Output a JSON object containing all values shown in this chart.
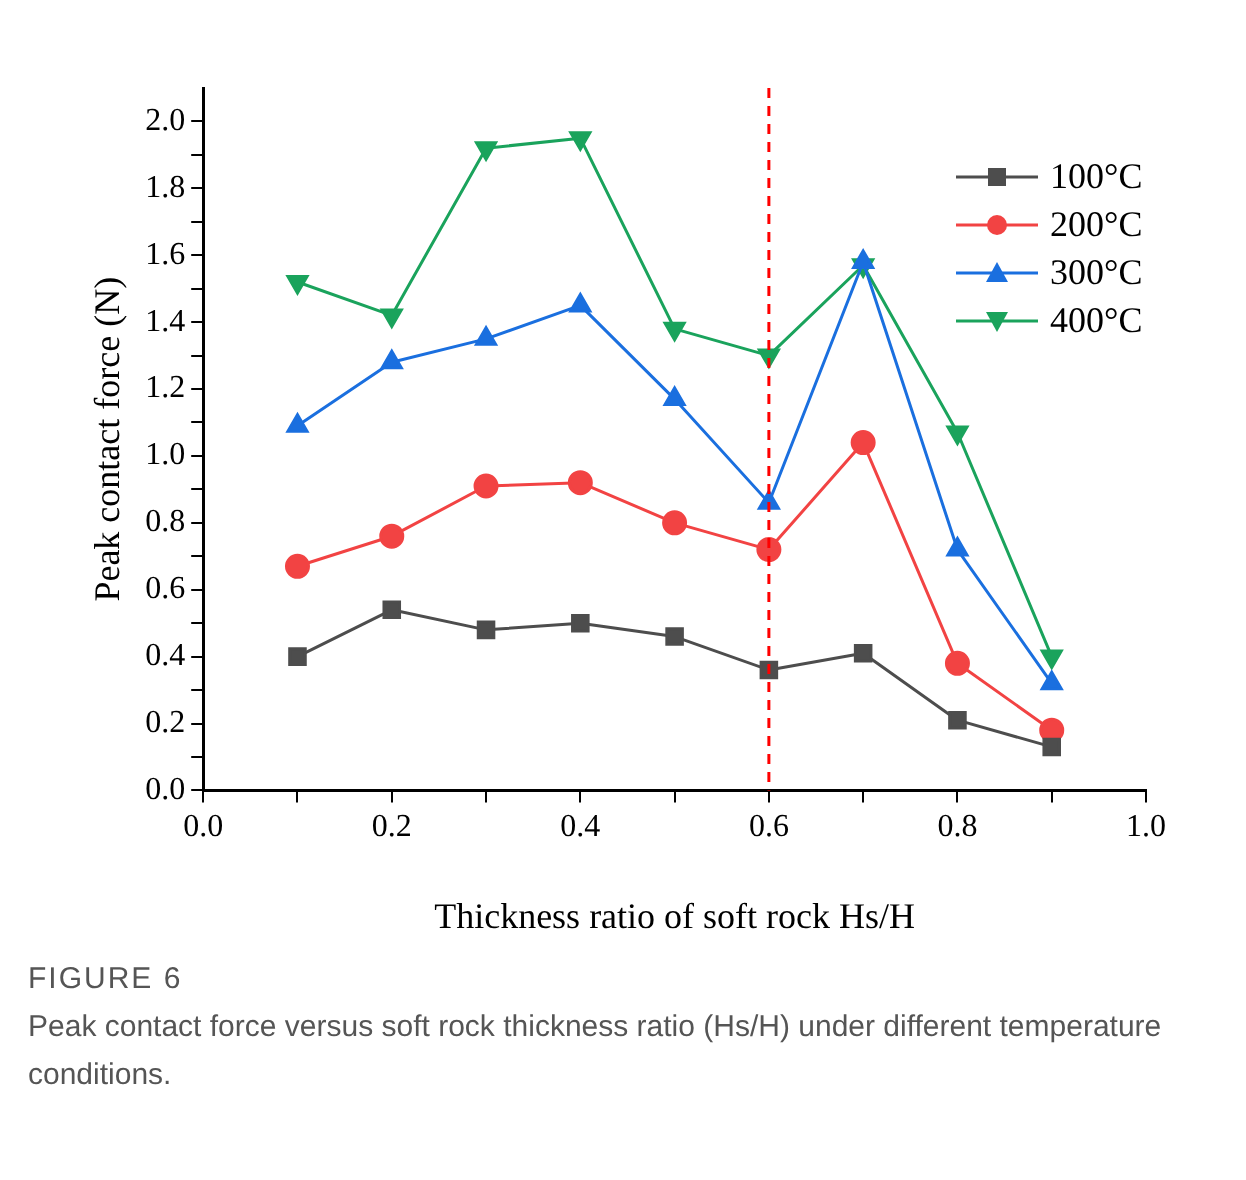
{
  "chart_data": {
    "type": "line",
    "xlabel": "Thickness ratio of soft rock Hs/H",
    "ylabel": "Peak contact force (N)",
    "x": [
      0.1,
      0.2,
      0.3,
      0.4,
      0.5,
      0.6,
      0.7,
      0.8,
      0.9
    ],
    "series": [
      {
        "name": "100°C",
        "color": "#4d4d4d",
        "marker": "square",
        "values": [
          0.4,
          0.54,
          0.48,
          0.5,
          0.46,
          0.36,
          0.41,
          0.21,
          0.13
        ]
      },
      {
        "name": "200°C",
        "color": "#f24343",
        "marker": "circle",
        "values": [
          0.67,
          0.76,
          0.91,
          0.92,
          0.8,
          0.72,
          1.04,
          0.38,
          0.18
        ]
      },
      {
        "name": "300°C",
        "color": "#1a6fdf",
        "marker": "triangle",
        "values": [
          1.09,
          1.28,
          1.35,
          1.45,
          1.17,
          0.86,
          1.58,
          0.72,
          0.32
        ]
      },
      {
        "name": "400°C",
        "color": "#1aa35c",
        "marker": "triangle-down",
        "values": [
          1.52,
          1.42,
          1.92,
          1.95,
          1.38,
          1.3,
          1.57,
          1.07,
          0.4
        ]
      }
    ],
    "xlim": [
      0,
      1
    ],
    "xticks": [
      {
        "value": 0,
        "label": "0.0"
      },
      {
        "value": 0.1,
        "label": null
      },
      {
        "value": 0.2,
        "label": "0.2"
      },
      {
        "value": 0.3,
        "label": null
      },
      {
        "value": 0.4,
        "label": "0.4"
      },
      {
        "value": 0.5,
        "label": null
      },
      {
        "value": 0.6,
        "label": "0.6"
      },
      {
        "value": 0.7,
        "label": null
      },
      {
        "value": 0.8,
        "label": "0.8"
      },
      {
        "value": 0.9,
        "label": null
      },
      {
        "value": 1,
        "label": "1.0"
      }
    ],
    "ylim": [
      0,
      2.1
    ],
    "yticks": [
      {
        "value": 0,
        "label": "0.0"
      },
      {
        "value": 0.1,
        "label": null
      },
      {
        "value": 0.2,
        "label": "0.2"
      },
      {
        "value": 0.3,
        "label": null
      },
      {
        "value": 0.4,
        "label": "0.4"
      },
      {
        "value": 0.5,
        "label": null
      },
      {
        "value": 0.6,
        "label": "0.6"
      },
      {
        "value": 0.7,
        "label": null
      },
      {
        "value": 0.8,
        "label": "0.8"
      },
      {
        "value": 0.9,
        "label": null
      },
      {
        "value": 1,
        "label": "1.0"
      },
      {
        "value": 1.1,
        "label": null
      },
      {
        "value": 1.2,
        "label": "1.2"
      },
      {
        "value": 1.3,
        "label": null
      },
      {
        "value": 1.4,
        "label": "1.4"
      },
      {
        "value": 1.5,
        "label": null
      },
      {
        "value": 1.6,
        "label": "1.6"
      },
      {
        "value": 1.7,
        "label": null
      },
      {
        "value": 1.8,
        "label": "1.8"
      },
      {
        "value": 1.9,
        "label": null
      },
      {
        "value": 2,
        "label": "2.0"
      }
    ],
    "ref_lines": [
      {
        "axis": "x",
        "value": 0.6,
        "color": "#ff0000",
        "line_style": "dashed"
      }
    ],
    "grid": false,
    "legend": "top right",
    "line_style": "solid",
    "annotations": [
      "FIGURE 6",
      "Peak contact force versus soft rock thickness ratio (Hs/H) under different temperature conditions."
    ]
  }
}
